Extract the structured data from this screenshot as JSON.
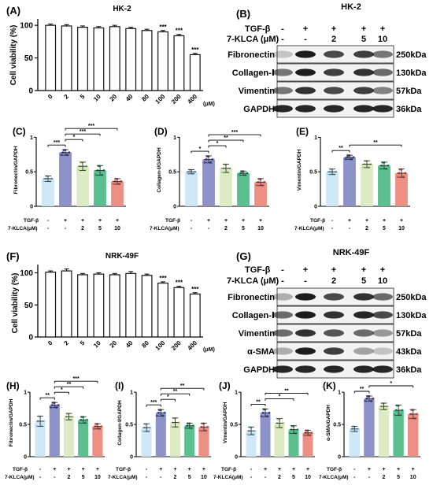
{
  "viability": [
    {
      "letter": "(A)",
      "title": "HK-2",
      "ylabel": "Cell viability (%)",
      "unit": "(μM)",
      "chart_data": {
        "type": "bar",
        "categories": [
          "0",
          "2",
          "5",
          "10",
          "20",
          "40",
          "80",
          "100",
          "200",
          "400"
        ],
        "values": [
          100,
          99,
          97,
          96,
          98,
          95,
          92,
          90,
          84,
          55
        ],
        "errors": [
          2,
          2,
          2,
          2,
          2,
          2,
          2,
          2,
          2,
          2
        ],
        "sig": [
          "",
          "",
          "",
          "",
          "",
          "",
          "",
          "***",
          "***",
          "***"
        ],
        "ylim": [
          0,
          100
        ],
        "yticks": [
          0,
          50,
          100
        ]
      }
    },
    {
      "letter": "(F)",
      "title": "NRK-49F",
      "ylabel": "Cell viability (%)",
      "unit": "(μM)",
      "chart_data": {
        "type": "bar",
        "categories": [
          "0",
          "2",
          "5",
          "10",
          "20",
          "40",
          "80",
          "100",
          "200",
          "400"
        ],
        "values": [
          101,
          103,
          97,
          98,
          97,
          99,
          96,
          84,
          77,
          67
        ],
        "errors": [
          2,
          3,
          2,
          2,
          2,
          3,
          2,
          2,
          2,
          2
        ],
        "sig": [
          "",
          "",
          "",
          "",
          "",
          "",
          "",
          "***",
          "***",
          "***"
        ],
        "ylim": [
          0,
          100
        ],
        "yticks": [
          0,
          50,
          100
        ]
      }
    }
  ],
  "blots": [
    {
      "letter": "(B)",
      "title": "HK-2",
      "row_labels": [
        "TGF-β",
        "7-KLCA (μM)"
      ],
      "tgf": [
        "-",
        "+",
        "+",
        "+",
        "+"
      ],
      "klca": [
        "-",
        "-",
        "2",
        "5",
        "10"
      ],
      "bands": [
        {
          "name": "Fibronectin",
          "size": "250kDa"
        },
        {
          "name": "Collagen-Ⅰ",
          "size": "130kDa"
        },
        {
          "name": "Vimentin",
          "size": "57kDa"
        },
        {
          "name": "GAPDH",
          "size": "36kDa"
        }
      ]
    },
    {
      "letter": "(G)",
      "title": "NRK-49F",
      "row_labels": [
        "TGF-β",
        "7-KLCA (μM)"
      ],
      "tgf": [
        "-",
        "+",
        "+",
        "+",
        "+"
      ],
      "klca": [
        "-",
        "-",
        "2",
        "5",
        "10"
      ],
      "bands": [
        {
          "name": "Fibronectin",
          "size": "250kDa"
        },
        {
          "name": "Collagen-Ⅰ",
          "size": "130kDa"
        },
        {
          "name": "Vimentin",
          "size": "57kDa"
        },
        {
          "name": "α-SMA",
          "size": "43kDa"
        },
        {
          "name": "GAPDH",
          "size": "36kDa"
        }
      ]
    }
  ],
  "quant": [
    {
      "letter": "(C)",
      "ylabel": "Fibronectin/GAPDH",
      "chart_data": {
        "type": "bar",
        "values": [
          0.4,
          0.78,
          0.58,
          0.52,
          0.36
        ],
        "errors": [
          0.04,
          0.04,
          0.06,
          0.07,
          0.04
        ],
        "ylim": [
          0,
          1.0
        ],
        "yticks": [
          0,
          0.5,
          1.0
        ],
        "sig": [
          [
            "1",
            "2",
            "***"
          ],
          [
            "2",
            "3",
            "*"
          ],
          [
            "2",
            "4",
            "***"
          ],
          [
            "2",
            "5",
            "***"
          ]
        ]
      }
    },
    {
      "letter": "(D)",
      "ylabel": "Collagen-Ⅰ/GAPDH",
      "chart_data": {
        "type": "bar",
        "values": [
          0.5,
          0.68,
          0.55,
          0.48,
          0.35
        ],
        "errors": [
          0.03,
          0.05,
          0.06,
          0.03,
          0.05
        ],
        "ylim": [
          0,
          1.0
        ],
        "yticks": [
          0,
          0.5,
          1.0
        ],
        "sig": [
          [
            "1",
            "2",
            "*"
          ],
          [
            "2",
            "3",
            "*"
          ],
          [
            "2",
            "4",
            "**"
          ],
          [
            "2",
            "5",
            "***"
          ]
        ]
      }
    },
    {
      "letter": "(E)",
      "ylabel": "Vimentin/GAPDH",
      "chart_data": {
        "type": "bar",
        "values": [
          0.5,
          0.71,
          0.61,
          0.59,
          0.48
        ],
        "errors": [
          0.04,
          0.03,
          0.05,
          0.05,
          0.06
        ],
        "ylim": [
          0,
          1.0
        ],
        "yticks": [
          0,
          0.5,
          1.0
        ],
        "sig": [
          [
            "1",
            "2",
            "**"
          ],
          [
            "2",
            "5",
            "**"
          ]
        ]
      }
    },
    {
      "letter": "(H)",
      "ylabel": "Fibronectin/GAPDH",
      "chart_data": {
        "type": "bar",
        "values": [
          0.55,
          0.8,
          0.62,
          0.57,
          0.47
        ],
        "errors": [
          0.08,
          0.04,
          0.05,
          0.05,
          0.04
        ],
        "ylim": [
          0,
          1.0
        ],
        "yticks": [
          0,
          0.5,
          1.0
        ],
        "sig": [
          [
            "1",
            "2",
            "**"
          ],
          [
            "2",
            "3",
            "*"
          ],
          [
            "2",
            "4",
            "**"
          ],
          [
            "2",
            "5",
            "***"
          ]
        ]
      }
    },
    {
      "letter": "(I)",
      "ylabel": "Collagen-Ⅰ/GAPDH",
      "chart_data": {
        "type": "bar",
        "values": [
          0.45,
          0.68,
          0.53,
          0.48,
          0.46
        ],
        "errors": [
          0.06,
          0.05,
          0.07,
          0.04,
          0.06
        ],
        "ylim": [
          0,
          1.0
        ],
        "yticks": [
          0,
          0.5,
          1.0
        ],
        "sig": [
          [
            "1",
            "2",
            "***"
          ],
          [
            "2",
            "3",
            "*"
          ],
          [
            "2",
            "4",
            "**"
          ],
          [
            "2",
            "5",
            "**"
          ]
        ]
      }
    },
    {
      "letter": "(J)",
      "ylabel": "Vimentin/GAPDH",
      "chart_data": {
        "type": "bar",
        "values": [
          0.4,
          0.68,
          0.52,
          0.42,
          0.37
        ],
        "errors": [
          0.06,
          0.06,
          0.07,
          0.06,
          0.04
        ],
        "ylim": [
          0,
          1.0
        ],
        "yticks": [
          0,
          0.5,
          1.0
        ],
        "sig": [
          [
            "1",
            "2",
            "**"
          ],
          [
            "2",
            "4",
            "*"
          ],
          [
            "2",
            "5",
            "**"
          ]
        ]
      }
    },
    {
      "letter": "(K)",
      "ylabel": "α-SMA/GAPDH",
      "chart_data": {
        "type": "bar",
        "values": [
          0.43,
          0.9,
          0.78,
          0.72,
          0.66
        ],
        "errors": [
          0.04,
          0.04,
          0.05,
          0.08,
          0.07
        ],
        "ylim": [
          0,
          1.0
        ],
        "yticks": [
          0,
          0.5,
          1.0
        ],
        "sig": [
          [
            "1",
            "2",
            "**"
          ],
          [
            "2",
            "5",
            "*"
          ]
        ]
      }
    }
  ],
  "group_labels": {
    "tgf_label": "TGF-β",
    "klca_label": "7-KLCA(μM)",
    "tgf": [
      "-",
      "+",
      "+",
      "+",
      "+"
    ],
    "klca": [
      "-",
      "-",
      "2",
      "5",
      "10"
    ]
  },
  "colors": {
    "viability_bar": "#111111",
    "groups": [
      "#cfe8f7",
      "#8d92c9",
      "#dcebc4",
      "#5cbf8f",
      "#ee8f84"
    ],
    "groups_point": [
      "#9ccfea",
      "#3a4595",
      "#b6d98a",
      "#27956a",
      "#d65a4c"
    ]
  }
}
